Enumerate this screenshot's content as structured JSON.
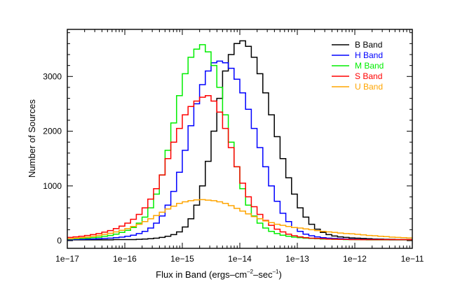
{
  "chart_data": {
    "type": "line",
    "style": "step-histogram",
    "title": "",
    "xlabel": {
      "main": "Flux in Band (ergs–cm",
      "sup1": "–2",
      "mid": "–sec",
      "sup2": "–1",
      "close": ")"
    },
    "ylabel": "Number of Sources",
    "xscale": "log",
    "xlim": [
      1e-17,
      1e-11
    ],
    "ylim": [
      -140,
      3860
    ],
    "x_ticks": [
      {
        "value": -17,
        "label": "1e−17"
      },
      {
        "value": -16,
        "label": "1e−16"
      },
      {
        "value": -15,
        "label": "1e−15"
      },
      {
        "value": -14,
        "label": "1e−14"
      },
      {
        "value": -13,
        "label": "1e−13"
      },
      {
        "value": -12,
        "label": "1e−12"
      },
      {
        "value": -11,
        "label": "1e−11"
      }
    ],
    "y_ticks": [
      {
        "value": 0,
        "label": "0"
      },
      {
        "value": 1000,
        "label": "1000"
      },
      {
        "value": 2000,
        "label": "2000"
      },
      {
        "value": 3000,
        "label": "3000"
      }
    ],
    "y_minor_step": 200,
    "grid": false,
    "legend_position": "top-right",
    "bin_start_log10": -17,
    "bin_width_log10": 0.1,
    "series": [
      {
        "name": "B Band",
        "color": "#000000",
        "values": [
          15,
          15,
          15,
          15,
          15,
          15,
          15,
          15,
          20,
          20,
          20,
          20,
          25,
          30,
          35,
          45,
          60,
          80,
          110,
          160,
          250,
          400,
          650,
          1000,
          1450,
          2000,
          2600,
          3100,
          3400,
          3600,
          3650,
          3550,
          3350,
          3050,
          2700,
          2300,
          1900,
          1500,
          1150,
          850,
          600,
          430,
          300,
          210,
          150,
          110,
          85,
          70,
          60,
          50,
          45,
          40,
          35,
          30,
          28,
          25,
          22,
          20,
          20,
          20
        ]
      },
      {
        "name": "H Band",
        "color": "#0000ff",
        "values": [
          20,
          22,
          25,
          28,
          30,
          35,
          40,
          45,
          55,
          65,
          80,
          100,
          130,
          170,
          230,
          320,
          450,
          650,
          900,
          1250,
          1650,
          2100,
          2500,
          2850,
          3100,
          3250,
          3280,
          3250,
          3150,
          2950,
          2700,
          2400,
          2050,
          1700,
          1350,
          1000,
          720,
          500,
          350,
          240,
          170,
          120,
          90,
          70,
          55,
          45,
          40,
          35,
          30,
          28,
          25,
          22,
          20,
          20,
          18,
          18,
          15,
          15,
          15,
          15
        ]
      },
      {
        "name": "M Band",
        "color": "#00ee00",
        "values": [
          30,
          35,
          40,
          45,
          55,
          65,
          80,
          95,
          120,
          150,
          190,
          240,
          320,
          430,
          600,
          850,
          1200,
          1650,
          2150,
          2650,
          3050,
          3350,
          3500,
          3580,
          3450,
          3200,
          2800,
          2300,
          1800,
          1350,
          950,
          650,
          450,
          320,
          230,
          170,
          130,
          100,
          80,
          65,
          55,
          45,
          40,
          35,
          30,
          28,
          25,
          22,
          20,
          20,
          18,
          18,
          15,
          15,
          15,
          15,
          15,
          15,
          15,
          15
        ]
      },
      {
        "name": "S Band",
        "color": "#ff0000",
        "values": [
          60,
          70,
          80,
          95,
          110,
          130,
          155,
          185,
          220,
          265,
          320,
          390,
          480,
          600,
          760,
          950,
          1200,
          1500,
          1800,
          2050,
          2300,
          2450,
          2550,
          2620,
          2650,
          2550,
          2350,
          2050,
          1700,
          1350,
          1050,
          800,
          620,
          480,
          370,
          280,
          210,
          160,
          120,
          90,
          70,
          55,
          45,
          40,
          35,
          30,
          28,
          25,
          22,
          20,
          20,
          18,
          18,
          18,
          18,
          18,
          18,
          18,
          18,
          18
        ]
      },
      {
        "name": "U Band",
        "color": "#ffa500",
        "values": [
          35,
          45,
          55,
          65,
          80,
          95,
          115,
          135,
          160,
          190,
          220,
          260,
          300,
          350,
          400,
          460,
          520,
          580,
          630,
          680,
          710,
          730,
          745,
          750,
          740,
          730,
          710,
          680,
          640,
          590,
          540,
          490,
          440,
          400,
          360,
          330,
          300,
          280,
          260,
          240,
          230,
          215,
          200,
          185,
          170,
          160,
          150,
          140,
          130,
          125,
          115,
          105,
          95,
          90,
          80,
          75,
          65,
          60,
          55,
          50
        ]
      }
    ]
  }
}
